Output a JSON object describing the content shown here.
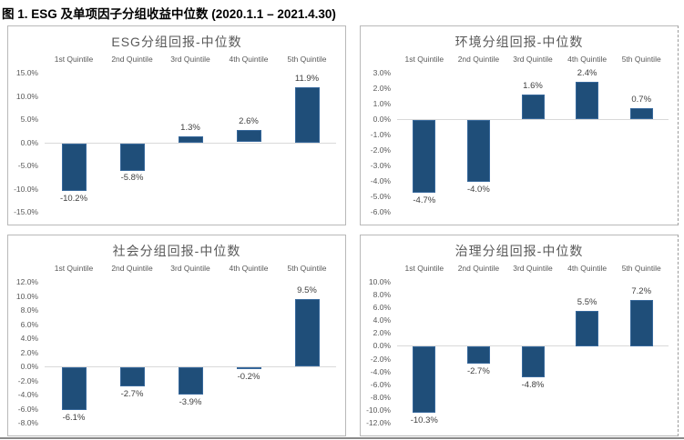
{
  "figure_title": "图 1. ESG 及单项因子分组收益中位数 (2020.1.1 – 2021.4.30)",
  "colors": {
    "bar_fill": "#1F4E79",
    "bar_border": "#37689B",
    "zero_line": "#D9D9D9",
    "panel_border": "#B9B9B9",
    "tick_text": "#595959",
    "data_label_text": "#404040",
    "chart_title_text": "#595959"
  },
  "chart_data": [
    {
      "type": "bar",
      "title": "ESG分组回报-中位数",
      "categories": [
        "1st Quintile",
        "2nd Quintile",
        "3rd Quintile",
        "4th Quintile",
        "5th Quintile"
      ],
      "values": [
        -10.2,
        -5.8,
        1.3,
        2.6,
        11.9
      ],
      "data_labels": [
        "-10.2%",
        "-5.8%",
        "1.3%",
        "2.6%",
        "11.9%"
      ],
      "ylim": [
        -15,
        15
      ],
      "yticks": [
        {
          "label": "15.0%",
          "v": 15
        },
        {
          "label": "10.0%",
          "v": 10
        },
        {
          "label": "5.0%",
          "v": 5
        },
        {
          "label": "0.0%",
          "v": 0
        },
        {
          "label": "-5.0%",
          "v": -5
        },
        {
          "label": "-10.0%",
          "v": -10
        },
        {
          "label": "-15.0%",
          "v": -15
        }
      ],
      "grid": "zero-line-only",
      "legend": "none"
    },
    {
      "type": "bar",
      "title": "环境分组回报-中位数",
      "categories": [
        "1st Quintile",
        "2nd Quintile",
        "3rd Quintile",
        "4th Quintile",
        "5th Quintile"
      ],
      "values": [
        -4.7,
        -4.0,
        1.6,
        2.4,
        0.7
      ],
      "data_labels": [
        "-4.7%",
        "-4.0%",
        "1.6%",
        "2.4%",
        "0.7%"
      ],
      "ylim": [
        -6,
        3
      ],
      "yticks": [
        {
          "label": "3.0%",
          "v": 3
        },
        {
          "label": "2.0%",
          "v": 2
        },
        {
          "label": "1.0%",
          "v": 1
        },
        {
          "label": "0.0%",
          "v": 0
        },
        {
          "label": "-1.0%",
          "v": -1
        },
        {
          "label": "-2.0%",
          "v": -2
        },
        {
          "label": "-3.0%",
          "v": -3
        },
        {
          "label": "-4.0%",
          "v": -4
        },
        {
          "label": "-5.0%",
          "v": -5
        },
        {
          "label": "-6.0%",
          "v": -6
        }
      ],
      "grid": "zero-line-only",
      "legend": "none"
    },
    {
      "type": "bar",
      "title": "社会分组回报-中位数",
      "categories": [
        "1st Quintile",
        "2nd Quintile",
        "3rd Quintile",
        "4th Quintile",
        "5th Quintile"
      ],
      "values": [
        -6.1,
        -2.7,
        -3.9,
        -0.2,
        9.5
      ],
      "data_labels": [
        "-6.1%",
        "-2.7%",
        "-3.9%",
        "-0.2%",
        "9.5%"
      ],
      "ylim": [
        -8,
        12
      ],
      "yticks": [
        {
          "label": "12.0%",
          "v": 12
        },
        {
          "label": "10.0%",
          "v": 10
        },
        {
          "label": "8.0%",
          "v": 8
        },
        {
          "label": "6.0%",
          "v": 6
        },
        {
          "label": "4.0%",
          "v": 4
        },
        {
          "label": "2.0%",
          "v": 2
        },
        {
          "label": "0.0%",
          "v": 0
        },
        {
          "label": "-2.0%",
          "v": -2
        },
        {
          "label": "-4.0%",
          "v": -4
        },
        {
          "label": "-6.0%",
          "v": -6
        },
        {
          "label": "-8.0%",
          "v": -8
        }
      ],
      "grid": "zero-line-only",
      "legend": "none"
    },
    {
      "type": "bar",
      "title": "治理分组回报-中位数",
      "categories": [
        "1st Quintile",
        "2nd Quintile",
        "3rd Quintile",
        "4th Quintile",
        "5th Quintile"
      ],
      "values": [
        -10.3,
        -2.7,
        -4.8,
        5.5,
        7.2
      ],
      "data_labels": [
        "-10.3%",
        "-2.7%",
        "-4.8%",
        "5.5%",
        "7.2%"
      ],
      "ylim": [
        -12,
        10
      ],
      "yticks": [
        {
          "label": "10.0%",
          "v": 10
        },
        {
          "label": "8.0%",
          "v": 8
        },
        {
          "label": "6.0%",
          "v": 6
        },
        {
          "label": "4.0%",
          "v": 4
        },
        {
          "label": "2.0%",
          "v": 2
        },
        {
          "label": "0.0%",
          "v": 0
        },
        {
          "label": "-2.0%",
          "v": -2
        },
        {
          "label": "-4.0%",
          "v": -4
        },
        {
          "label": "-6.0%",
          "v": -6
        },
        {
          "label": "-8.0%",
          "v": -8
        },
        {
          "label": "-10.0%",
          "v": -10
        },
        {
          "label": "-12.0%",
          "v": -12
        }
      ],
      "grid": "zero-line-only",
      "legend": "none"
    }
  ]
}
